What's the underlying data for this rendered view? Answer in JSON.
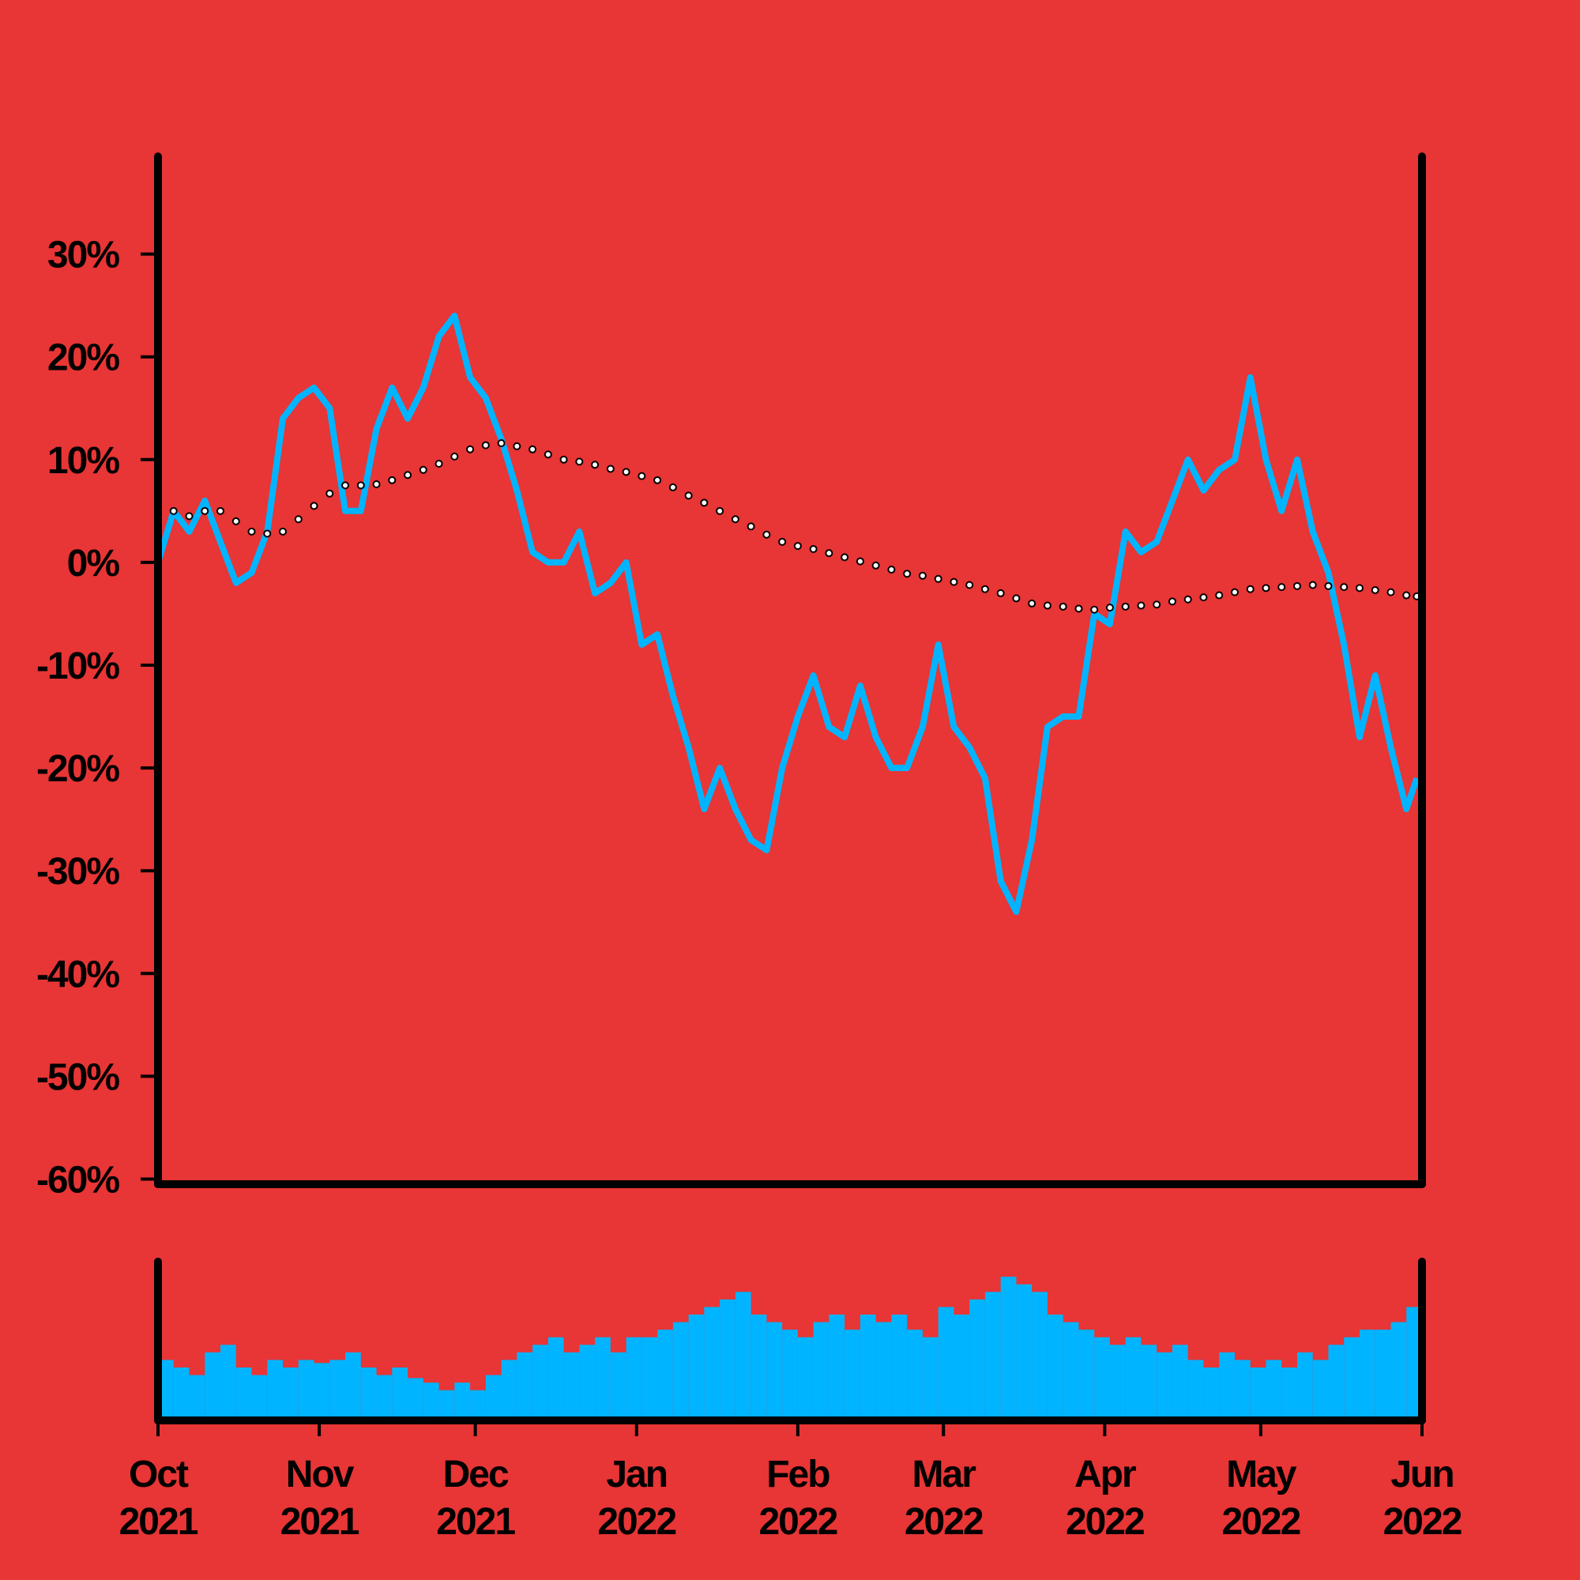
{
  "chart_data": {
    "type": "line",
    "background": "#e83535",
    "xlim": [
      "2021-10-01",
      "2022-06-01"
    ],
    "xticks": [
      {
        "value": "2021-10-01",
        "label": "Oct 2021"
      },
      {
        "value": "2021-11-01",
        "label": "Nov 2021"
      },
      {
        "value": "2021-12-01",
        "label": "Dec 2021"
      },
      {
        "value": "2022-01-01",
        "label": "Jan 2022"
      },
      {
        "value": "2022-02-01",
        "label": "Feb 2022"
      },
      {
        "value": "2022-03-01",
        "label": "Mar 2022"
      },
      {
        "value": "2022-04-01",
        "label": "Apr 2022"
      },
      {
        "value": "2022-05-01",
        "label": "May 2022"
      },
      {
        "value": "2022-06-01",
        "label": "Jun 2022"
      }
    ],
    "ylim": [
      -60.5,
      39.5
    ],
    "yticks": [
      {
        "value": 30,
        "label": "30%"
      },
      {
        "value": 20,
        "label": "20%"
      },
      {
        "value": 10,
        "label": "10%"
      },
      {
        "value": 0,
        "label": "0%"
      },
      {
        "value": -10,
        "label": "-10%"
      },
      {
        "value": -20,
        "label": "-20%"
      },
      {
        "value": -30,
        "label": "-30%"
      },
      {
        "value": -40,
        "label": "-40%"
      },
      {
        "value": -50,
        "label": "-50%"
      },
      {
        "value": -60,
        "label": "-60%"
      }
    ],
    "volume_ylim": [
      0,
      105
    ],
    "x": [
      "2021-10-01",
      "2021-10-04",
      "2021-10-07",
      "2021-10-10",
      "2021-10-13",
      "2021-10-16",
      "2021-10-19",
      "2021-10-22",
      "2021-10-25",
      "2021-10-28",
      "2021-10-31",
      "2021-11-03",
      "2021-11-06",
      "2021-11-09",
      "2021-11-12",
      "2021-11-15",
      "2021-11-18",
      "2021-11-21",
      "2021-11-24",
      "2021-11-27",
      "2021-11-30",
      "2021-12-03",
      "2021-12-06",
      "2021-12-09",
      "2021-12-12",
      "2021-12-15",
      "2021-12-18",
      "2021-12-21",
      "2021-12-24",
      "2021-12-27",
      "2021-12-30",
      "2022-01-02",
      "2022-01-05",
      "2022-01-08",
      "2022-01-11",
      "2022-01-14",
      "2022-01-17",
      "2022-01-20",
      "2022-01-23",
      "2022-01-26",
      "2022-01-29",
      "2022-02-01",
      "2022-02-04",
      "2022-02-07",
      "2022-02-10",
      "2022-02-13",
      "2022-02-16",
      "2022-02-19",
      "2022-02-22",
      "2022-02-25",
      "2022-02-28",
      "2022-03-03",
      "2022-03-06",
      "2022-03-09",
      "2022-03-12",
      "2022-03-15",
      "2022-03-18",
      "2022-03-21",
      "2022-03-24",
      "2022-03-27",
      "2022-03-30",
      "2022-04-02",
      "2022-04-05",
      "2022-04-08",
      "2022-04-11",
      "2022-04-14",
      "2022-04-17",
      "2022-04-20",
      "2022-04-23",
      "2022-04-26",
      "2022-04-29",
      "2022-05-02",
      "2022-05-05",
      "2022-05-08",
      "2022-05-11",
      "2022-05-14",
      "2022-05-17",
      "2022-05-20",
      "2022-05-23",
      "2022-05-26",
      "2022-05-29",
      "2022-05-31"
    ],
    "series": [
      {
        "color": "#00b4ff",
        "values": [
          0,
          5,
          3,
          6,
          2,
          -2,
          -1,
          3,
          14,
          16,
          17,
          15,
          5,
          5,
          13,
          17,
          14,
          17,
          22,
          24,
          18,
          16,
          12,
          7,
          1,
          0,
          0,
          3,
          -3,
          -2,
          0,
          -8,
          -7,
          -13,
          -18,
          -24,
          -20,
          -24,
          -27,
          -28,
          -20,
          -15,
          -11,
          -16,
          -17,
          -12,
          -17,
          -20,
          -20,
          -16,
          -8,
          -16,
          -18,
          -21,
          -31,
          -34,
          -27,
          -16,
          -15,
          -15,
          -5,
          -6,
          3,
          1,
          2,
          6,
          10,
          7,
          9,
          10,
          18,
          10,
          5,
          10,
          3,
          -1,
          -8,
          -17,
          -11,
          -18,
          -24,
          -21
        ]
      },
      {
        "color": "#ffffff",
        "values": [
          5,
          5,
          4.5,
          5,
          5,
          4,
          3,
          2.8,
          3,
          4.2,
          5.5,
          6.7,
          7.5,
          7.5,
          7.6,
          8,
          8.5,
          9,
          9.6,
          10.3,
          11,
          11.4,
          11.6,
          11.3,
          11,
          10.5,
          10,
          9.8,
          9.5,
          9.1,
          8.8,
          8.4,
          8,
          7.3,
          6.5,
          5.8,
          5,
          4.2,
          3.5,
          2.7,
          2,
          1.6,
          1.3,
          0.9,
          0.5,
          0.1,
          -0.3,
          -0.7,
          -1.1,
          -1.3,
          -1.6,
          -1.9,
          -2.2,
          -2.6,
          -3,
          -3.5,
          -4,
          -4.2,
          -4.3,
          -4.5,
          -4.6,
          -4.4,
          -4.3,
          -4.2,
          -4.1,
          -3.8,
          -3.6,
          -3.4,
          -3.2,
          -2.9,
          -2.6,
          -2.5,
          -2.4,
          -2.3,
          -2.2,
          -2.3,
          -2.4,
          -2.5,
          -2.7,
          -2.9,
          -3.2,
          -3.3
        ]
      }
    ],
    "volume": {
      "color": "#00b4ff",
      "values": [
        40,
        35,
        30,
        45,
        50,
        35,
        30,
        40,
        35,
        40,
        38,
        40,
        45,
        35,
        30,
        35,
        28,
        25,
        20,
        25,
        20,
        30,
        40,
        45,
        50,
        55,
        45,
        50,
        55,
        45,
        55,
        55,
        60,
        65,
        70,
        75,
        80,
        85,
        70,
        65,
        60,
        55,
        65,
        70,
        60,
        70,
        65,
        70,
        60,
        55,
        75,
        70,
        80,
        85,
        95,
        90,
        85,
        70,
        65,
        60,
        55,
        50,
        55,
        50,
        45,
        50,
        40,
        35,
        45,
        40,
        35,
        40,
        35,
        45,
        40,
        50,
        55,
        60,
        60,
        65,
        75,
        65
      ]
    }
  }
}
